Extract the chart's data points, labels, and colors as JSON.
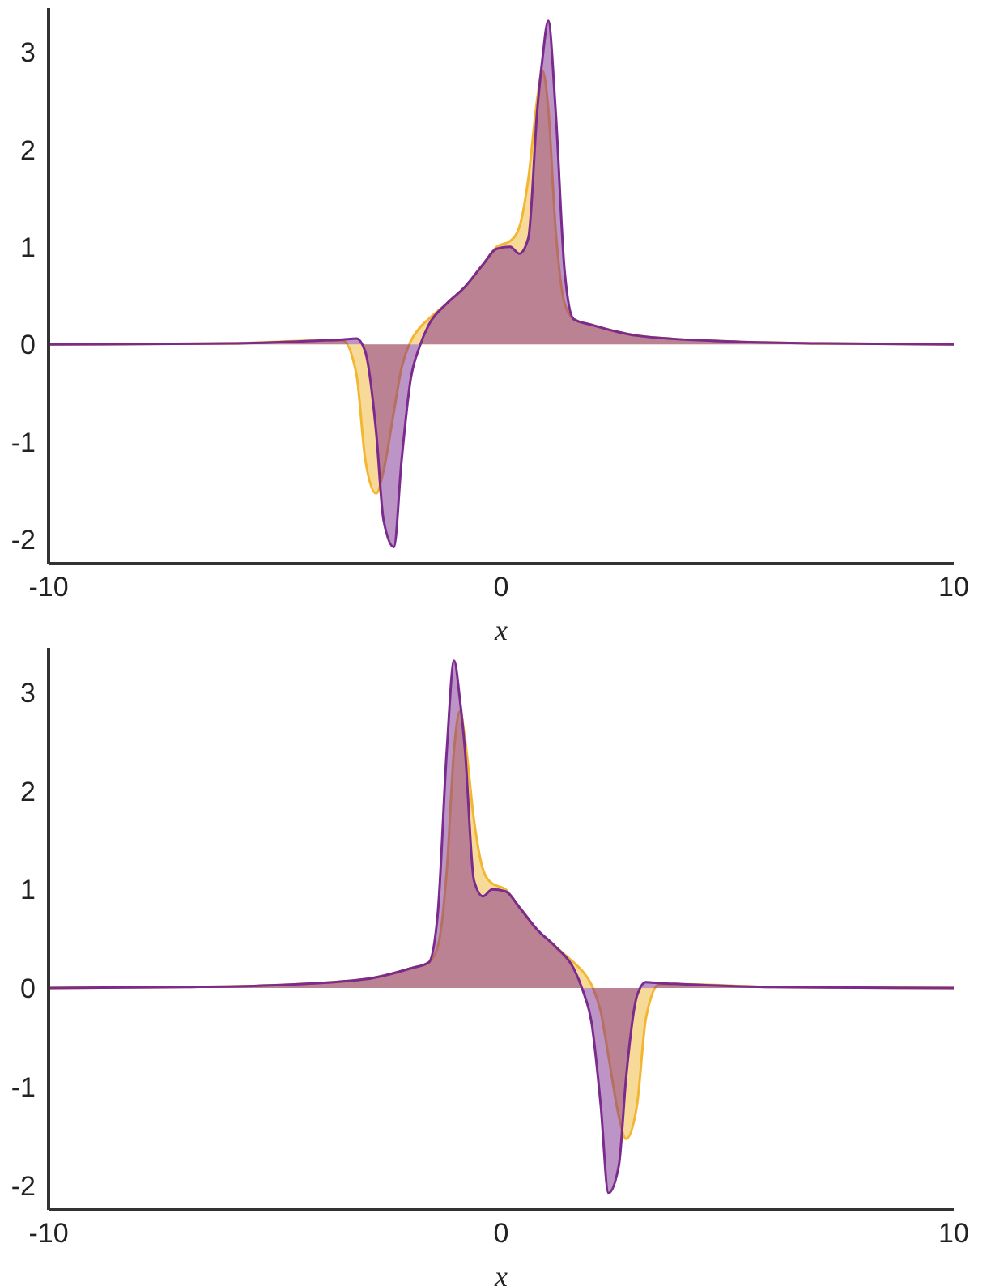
{
  "chart_data": [
    {
      "type": "area",
      "xlabel": "x",
      "x": [
        -10,
        -6,
        -4,
        -3.5,
        -3.2,
        -3,
        -2.76,
        -2.6,
        -2.37,
        -2.2,
        -2,
        -1.8,
        -1.6,
        -1.2,
        -0.8,
        -0.4,
        -0.1,
        0.2,
        0.4,
        0.6,
        0.8,
        0.91,
        1.04,
        1.2,
        1.4,
        1.6,
        2,
        3,
        5,
        7,
        10
      ],
      "xlim": [
        -10,
        10
      ],
      "xticks": [
        -10,
        0,
        10
      ],
      "ylim": [
        -2.25,
        3.45
      ],
      "yticks": [
        -2,
        -1,
        0,
        1,
        2,
        3
      ],
      "series": [
        {
          "color": "#f2b632",
          "values": [
            0,
            0.01,
            0.04,
            0.04,
            -0.3,
            -1.19,
            -1.53,
            -1.3,
            -0.69,
            -0.24,
            0.03,
            0.17,
            0.26,
            0.42,
            0.59,
            0.82,
            1.0,
            1.06,
            1.2,
            1.7,
            2.53,
            2.81,
            2.42,
            1.2,
            0.42,
            0.26,
            0.2,
            0.09,
            0.03,
            0.01,
            0
          ]
        },
        {
          "color": "#7b2a8e",
          "values": [
            0,
            0.01,
            0.04,
            0.05,
            0.06,
            -0.08,
            -0.91,
            -1.8,
            -2.08,
            -1.19,
            -0.36,
            -0.02,
            0.2,
            0.42,
            0.59,
            0.82,
            0.98,
            1.0,
            0.93,
            1.09,
            2.42,
            2.92,
            3.32,
            2.42,
            0.76,
            0.26,
            0.2,
            0.09,
            0.03,
            0.01,
            0
          ]
        }
      ]
    },
    {
      "type": "area",
      "xlabel": "x",
      "x": [
        -10,
        -7,
        -5,
        -3,
        -2,
        -1.6,
        -1.4,
        -1.2,
        -1.04,
        -0.91,
        -0.8,
        -0.6,
        -0.4,
        -0.2,
        0.1,
        0.4,
        0.8,
        1.2,
        1.6,
        1.8,
        2,
        2.2,
        2.37,
        2.6,
        2.76,
        3,
        3.2,
        3.5,
        4,
        6,
        10
      ],
      "xlim": [
        -10,
        10
      ],
      "xticks": [
        -10,
        0,
        10
      ],
      "ylim": [
        -2.25,
        3.45
      ],
      "yticks": [
        -2,
        -1,
        0,
        1,
        2,
        3
      ],
      "series": [
        {
          "color": "#f2b632",
          "values": [
            0,
            0.01,
            0.03,
            0.09,
            0.2,
            0.26,
            0.42,
            1.2,
            2.42,
            2.81,
            2.53,
            1.7,
            1.2,
            1.06,
            1.0,
            0.82,
            0.59,
            0.42,
            0.26,
            0.17,
            0.03,
            -0.24,
            -0.69,
            -1.3,
            -1.53,
            -1.19,
            -0.3,
            0.04,
            0.04,
            0.01,
            0
          ]
        },
        {
          "color": "#7b2a8e",
          "values": [
            0,
            0.01,
            0.03,
            0.09,
            0.2,
            0.26,
            0.76,
            2.42,
            3.32,
            2.92,
            2.42,
            1.09,
            0.93,
            1.0,
            0.98,
            0.82,
            0.59,
            0.42,
            0.2,
            -0.02,
            -0.36,
            -1.19,
            -2.08,
            -1.8,
            -0.91,
            -0.08,
            0.06,
            0.05,
            0.04,
            0.01,
            0
          ]
        }
      ]
    }
  ]
}
